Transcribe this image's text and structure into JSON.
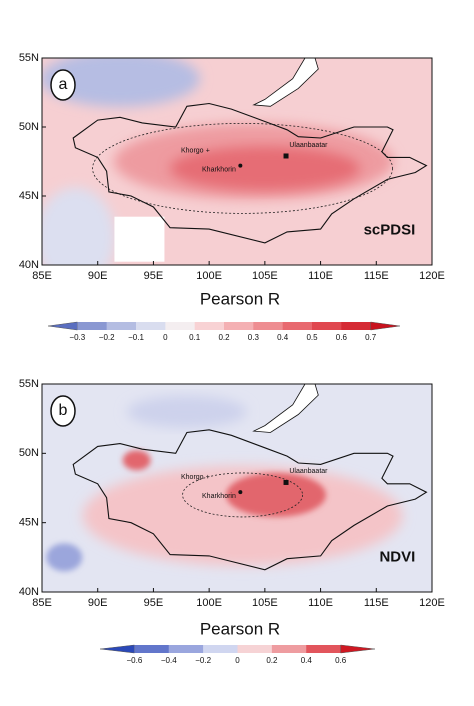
{
  "panels": [
    {
      "label": "a",
      "index_name": "scPDSI",
      "lat_labels": [
        "55N",
        "50N",
        "45N",
        "40N"
      ],
      "lon_labels": [
        "85E",
        "90E",
        "95E",
        "100E",
        "105E",
        "110E",
        "115E",
        "120E"
      ],
      "places": [
        "Khorgo",
        "Kharkhorin",
        "Ulaanbaatar"
      ],
      "axis_title": "Pearson R",
      "colorbar_labels": [
        "−0.3",
        "−0.2",
        "−0.1",
        "0",
        "0.1",
        "0.2",
        "0.3",
        "0.4",
        "0.5",
        "0.6",
        "0.7"
      ]
    },
    {
      "label": "b",
      "index_name": "NDVI",
      "lat_labels": [
        "55N",
        "50N",
        "45N",
        "40N"
      ],
      "lon_labels": [
        "85E",
        "90E",
        "95E",
        "100E",
        "105E",
        "110E",
        "115E",
        "120E"
      ],
      "places": [
        "Khorgo",
        "Kharkhorin",
        "Ulaanbaatar"
      ],
      "axis_title": "Pearson R",
      "colorbar_labels": [
        "−0.6",
        "−0.4",
        "−0.2",
        "0",
        "0.2",
        "0.4",
        "0.6"
      ]
    }
  ]
}
